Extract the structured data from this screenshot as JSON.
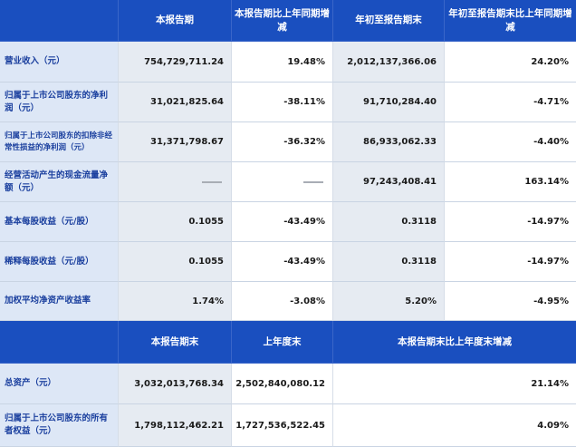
{
  "header1": [
    "",
    "本报告期",
    "本报告期比上年同期增减",
    "年初至报告期末",
    "年初至报告期末比上年同期增减"
  ],
  "rows1": [
    {
      "label": "营业收入（元）",
      "values": [
        "754,729,711.24",
        "19.48%",
        "2,012,137,366.06",
        "24.20%"
      ]
    },
    {
      "label": "归属于上市公司股东的净利润（元）",
      "values": [
        "31,021,825.64",
        "-38.11%",
        "91,710,284.40",
        "-4.71%"
      ]
    },
    {
      "label": "归属于上市公司股东的扣除非经常性损益的净利润（元）",
      "values": [
        "31,371,798.67",
        "-36.32%",
        "86,933,062.33",
        "-4.40%"
      ]
    },
    {
      "label": "经营活动产生的现金流量净额（元）",
      "values": [
        "—",
        "—",
        "97,243,408.41",
        "163.14%"
      ]
    },
    {
      "label": "基本每股收益（元/股）",
      "values": [
        "0.1055",
        "-43.49%",
        "0.3118",
        "-14.97%"
      ]
    },
    {
      "label": "稀释每股收益（元/股）",
      "values": [
        "0.1055",
        "-43.49%",
        "0.3118",
        "-14.97%"
      ]
    },
    {
      "label": "加权平均净资产收益率",
      "values": [
        "1.74%",
        "-3.08%",
        "5.20%",
        "-4.95%"
      ]
    }
  ],
  "header2": [
    "",
    "本报告期末",
    "上年度末",
    "本报告期末比上年度末增减"
  ],
  "rows2": [
    {
      "label": "总资产（元）",
      "values": [
        "3,032,013,768.34",
        "2,502,840,080.12",
        "21.14%"
      ]
    },
    {
      "label": "归属于上市公司股东的所有者权益（元）",
      "values": [
        "1,798,112,462.21",
        "1,727,536,522.45",
        "4.09%"
      ]
    }
  ]
}
